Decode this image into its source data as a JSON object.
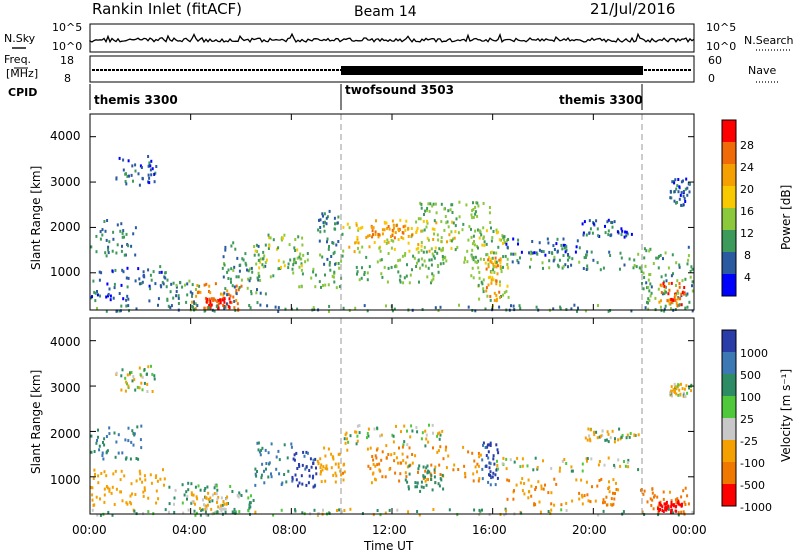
{
  "header": {
    "title": "Rankin Inlet (fitACF)",
    "beam": "Beam 14",
    "date": "21/Jul/2016"
  },
  "noise_panel": {
    "left_label": "N.Sky",
    "left_ticks": [
      "10^5",
      "10^0"
    ],
    "right_ticks": [
      "10^5",
      "10^0"
    ],
    "right_label": "N.Search"
  },
  "freq_panel": {
    "left_label_1": "Freq.",
    "left_label_2": "[MHz]",
    "left_ticks": [
      "18",
      "8"
    ],
    "right_ticks": [
      "60",
      "0"
    ],
    "right_label": "Nave"
  },
  "cpid": {
    "label": "CPID",
    "segments": [
      "themis 3300",
      "twofsound 3503",
      "themis 3300"
    ],
    "boundaries_hours": [
      10.0,
      21.8
    ]
  },
  "axes": {
    "y_label": "Slant Range [km]",
    "y_ticks": [
      "4000",
      "3000",
      "2000",
      "1000"
    ],
    "y_range_km": [
      180,
      4500
    ],
    "x_range_hours": [
      0,
      24
    ],
    "x_ticks": [
      "00:00",
      "04:00",
      "08:00",
      "12:00",
      "16:00",
      "20:00",
      "00:00"
    ],
    "x_label": "Time UT"
  },
  "power_scale": {
    "title": "Power [dB]",
    "ticks": [
      "28",
      "24",
      "20",
      "16",
      "12",
      "8",
      "4"
    ],
    "colors": [
      "#ff0000",
      "#f06a08",
      "#f4a000",
      "#f8c800",
      "#8cc83c",
      "#3c9a5a",
      "#2a5aa0",
      "#0000ff"
    ]
  },
  "velocity_scale": {
    "title": "Velocity [m s⁻¹]",
    "ticks": [
      "1000",
      "500",
      "100",
      "25",
      "-25",
      "-100",
      "-500",
      "-1000"
    ],
    "colors": [
      "#2a3ca8",
      "#3c78b4",
      "#2e8c64",
      "#50c83c",
      "#c8c8c8",
      "#f4a000",
      "#f07800",
      "#ff0000"
    ]
  },
  "chart_data": {
    "type": "heatmap",
    "x_unit": "hours UT",
    "y_unit": "km",
    "panels": [
      {
        "name": "Power",
        "regions": [
          {
            "t": [
              1.0,
              2.6
            ],
            "r": [
              2900,
              3600
            ],
            "v": 6
          },
          {
            "t": [
              0.0,
              1.8
            ],
            "r": [
              1400,
              2200
            ],
            "v": 8
          },
          {
            "t": [
              0.0,
              3.0
            ],
            "r": [
              400,
              1200
            ],
            "v": 6
          },
          {
            "t": [
              3.0,
              4.3
            ],
            "r": [
              200,
              900
            ],
            "v": 10
          },
          {
            "t": [
              4.0,
              6.0
            ],
            "r": [
              200,
              800
            ],
            "v": 24
          },
          {
            "t": [
              4.5,
              5.6
            ],
            "r": [
              250,
              500
            ],
            "v": 30
          },
          {
            "t": [
              5.2,
              7.0
            ],
            "r": [
              300,
              1700
            ],
            "v": 9
          },
          {
            "t": [
              6.5,
              8.5
            ],
            "r": [
              900,
              1900
            ],
            "v": 14
          },
          {
            "t": [
              8.0,
              10.0
            ],
            "r": [
              700,
              1500
            ],
            "v": 12
          },
          {
            "t": [
              9.0,
              10.0
            ],
            "r": [
              1200,
              2400
            ],
            "v": 8
          },
          {
            "t": [
              10.0,
              14.5
            ],
            "r": [
              1500,
              2200
            ],
            "v": 18
          },
          {
            "t": [
              10.5,
              14.0
            ],
            "r": [
              800,
              1500
            ],
            "v": 12
          },
          {
            "t": [
              11.0,
              12.8
            ],
            "r": [
              1800,
              2100
            ],
            "v": 24
          },
          {
            "t": [
              13.0,
              16.0
            ],
            "r": [
              1200,
              2600
            ],
            "v": 12
          },
          {
            "t": [
              15.0,
              16.6
            ],
            "r": [
              300,
              2000
            ],
            "v": 14
          },
          {
            "t": [
              15.7,
              16.3
            ],
            "r": [
              400,
              1400
            ],
            "v": 22
          },
          {
            "t": [
              16.0,
              21.8
            ],
            "r": [
              1100,
              1500
            ],
            "v": 10
          },
          {
            "t": [
              16.5,
              19.5
            ],
            "r": [
              1400,
              1800
            ],
            "v": 6
          },
          {
            "t": [
              19.5,
              21.5
            ],
            "r": [
              1800,
              2200
            ],
            "v": 6
          },
          {
            "t": [
              21.8,
              24.0
            ],
            "r": [
              200,
              1600
            ],
            "v": 10
          },
          {
            "t": [
              22.5,
              23.6
            ],
            "r": [
              300,
              800
            ],
            "v": 26
          },
          {
            "t": [
              23.0,
              23.8
            ],
            "r": [
              2500,
              3100
            ],
            "v": 6
          },
          {
            "t": [
              0.0,
              24.0
            ],
            "r": [
              180,
              320
            ],
            "v": 9
          }
        ]
      },
      {
        "name": "Velocity",
        "regions": [
          {
            "t": [
              1.0,
              2.6
            ],
            "r": [
              2900,
              3500
            ],
            "v": 0
          },
          {
            "t": [
              0.0,
              2.0
            ],
            "r": [
              1400,
              2200
            ],
            "v": 300
          },
          {
            "t": [
              0.0,
              3.0
            ],
            "r": [
              400,
              1200
            ],
            "v": -150
          },
          {
            "t": [
              3.0,
              6.5
            ],
            "r": [
              200,
              900
            ],
            "v": 80
          },
          {
            "t": [
              4.0,
              5.5
            ],
            "r": [
              300,
              700
            ],
            "v": -80
          },
          {
            "t": [
              6.5,
              8.0
            ],
            "r": [
              800,
              1800
            ],
            "v": 300
          },
          {
            "t": [
              8.0,
              9.0
            ],
            "r": [
              800,
              1600
            ],
            "v": 800
          },
          {
            "t": [
              9.0,
              10.2
            ],
            "r": [
              900,
              1700
            ],
            "v": -200
          },
          {
            "t": [
              10.0,
              14.0
            ],
            "r": [
              1700,
              2200
            ],
            "v": 0
          },
          {
            "t": [
              11.0,
              15.5
            ],
            "r": [
              900,
              1700
            ],
            "v": -300
          },
          {
            "t": [
              12.5,
              14.0
            ],
            "r": [
              700,
              1300
            ],
            "v": 200
          },
          {
            "t": [
              15.5,
              16.2
            ],
            "r": [
              800,
              1800
            ],
            "v": 800
          },
          {
            "t": [
              16.0,
              21.8
            ],
            "r": [
              1150,
              1450
            ],
            "v": 0
          },
          {
            "t": [
              16.5,
              21.0
            ],
            "r": [
              400,
              1000
            ],
            "v": -300
          },
          {
            "t": [
              19.5,
              21.8
            ],
            "r": [
              1800,
              2100
            ],
            "v": 0
          },
          {
            "t": [
              21.8,
              23.8
            ],
            "r": [
              200,
              800
            ],
            "v": -400
          },
          {
            "t": [
              22.5,
              23.5
            ],
            "r": [
              250,
              500
            ],
            "v": -900
          },
          {
            "t": [
              23.0,
              23.9
            ],
            "r": [
              2800,
              3100
            ],
            "v": 0
          },
          {
            "t": [
              0.0,
              24.0
            ],
            "r": [
              180,
              320
            ],
            "v": 40
          }
        ]
      }
    ]
  }
}
